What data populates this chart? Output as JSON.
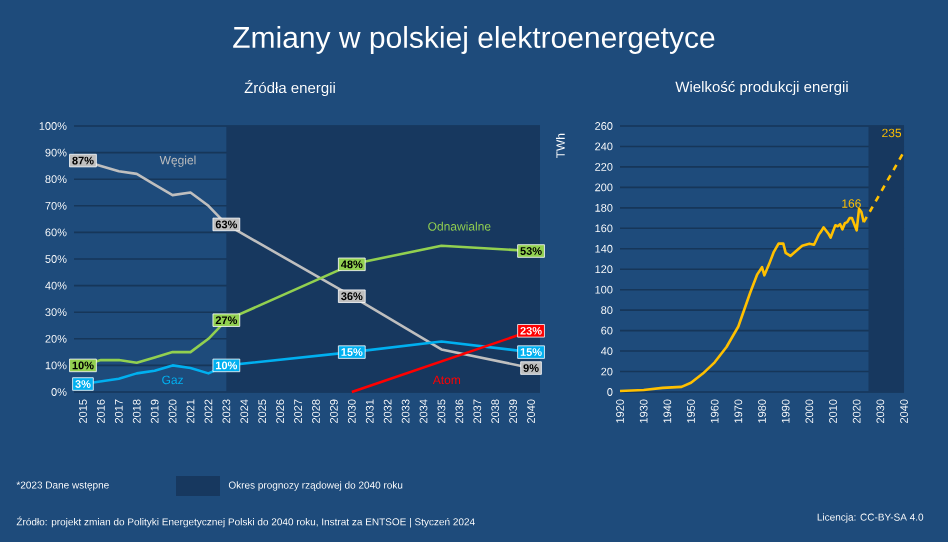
{
  "chart_data": [
    {
      "type": "line",
      "title": "Zmiany w polskiej elektroenergetyce",
      "subtitle": "Źródła energii",
      "categories": [
        "2015",
        "2016",
        "2017",
        "2018",
        "2019",
        "2020",
        "2021",
        "2022",
        "2023",
        "2024",
        "2025",
        "2026",
        "2027",
        "2028",
        "2029",
        "2030",
        "2031",
        "2032",
        "2033",
        "2034",
        "2035",
        "2036",
        "2037",
        "2038",
        "2039",
        "2040"
      ],
      "series": [
        {
          "name": "Węgiel",
          "color": "#bfbfbf",
          "values": [
            87,
            85,
            83,
            82,
            78,
            74,
            75,
            70,
            63,
            null,
            null,
            null,
            null,
            null,
            null,
            36,
            null,
            null,
            null,
            null,
            16,
            null,
            null,
            null,
            null,
            9
          ],
          "value_labels": [
            "87%",
            null,
            null,
            null,
            null,
            null,
            null,
            null,
            "63%",
            null,
            null,
            null,
            null,
            null,
            null,
            "36%",
            null,
            null,
            null,
            null,
            null,
            null,
            null,
            null,
            null,
            "9%"
          ]
        },
        {
          "name": "Odnawialne",
          "color": "#92d050",
          "values": [
            10,
            12,
            12,
            11,
            13,
            15,
            15,
            20,
            27,
            null,
            null,
            null,
            null,
            null,
            null,
            48,
            null,
            null,
            null,
            null,
            55,
            null,
            null,
            null,
            null,
            53
          ],
          "value_labels": [
            "10%",
            null,
            null,
            null,
            null,
            null,
            null,
            null,
            "27%",
            null,
            null,
            null,
            null,
            null,
            null,
            "48%",
            null,
            null,
            null,
            null,
            null,
            null,
            null,
            null,
            null,
            "53%"
          ]
        },
        {
          "name": "Gaz",
          "color": "#00b0f0",
          "values": [
            3,
            4,
            5,
            7,
            8,
            10,
            9,
            7,
            10,
            null,
            null,
            null,
            null,
            null,
            null,
            15,
            null,
            null,
            null,
            null,
            19,
            null,
            null,
            null,
            null,
            15
          ],
          "value_labels": [
            "3%",
            null,
            null,
            null,
            null,
            null,
            null,
            null,
            "10%",
            null,
            null,
            null,
            null,
            null,
            null,
            "15%",
            null,
            null,
            null,
            null,
            null,
            null,
            null,
            null,
            null,
            "15%"
          ]
        },
        {
          "name": "Atom",
          "color": "#ff0000",
          "values": [
            null,
            null,
            null,
            null,
            null,
            null,
            null,
            null,
            null,
            null,
            null,
            null,
            null,
            null,
            null,
            0,
            null,
            null,
            null,
            null,
            null,
            null,
            null,
            null,
            null,
            23
          ],
          "value_labels": [
            null,
            null,
            null,
            null,
            null,
            null,
            null,
            null,
            null,
            null,
            null,
            null,
            null,
            null,
            null,
            null,
            null,
            null,
            null,
            null,
            null,
            null,
            null,
            null,
            null,
            "23%"
          ]
        }
      ],
      "ylim": [
        0,
        100
      ],
      "yticks": [
        {
          "value": 0,
          "label": "0%"
        },
        {
          "value": 10,
          "label": "10%"
        },
        {
          "value": 20,
          "label": "20%"
        },
        {
          "value": 30,
          "label": "30%"
        },
        {
          "value": 40,
          "label": "40%"
        },
        {
          "value": 50,
          "label": "50%"
        },
        {
          "value": 60,
          "label": "60%"
        },
        {
          "value": 70,
          "label": "70%"
        },
        {
          "value": 80,
          "label": "80%"
        },
        {
          "value": 90,
          "label": "90%"
        },
        {
          "value": 100,
          "label": "100%"
        }
      ],
      "bands": [
        {
          "axis": "x",
          "from": "2023",
          "to": "2040",
          "label": "Okres prognozy rządowej do 2040 roku",
          "color": "#17385f"
        }
      ],
      "annotations": [
        "*2023 Dane wstępne",
        "Źródło: projekt zmian do Polityki Energetycznej Polski do 2040 roku,  Instrat za ENTSOE |  Styczeń 2024"
      ],
      "grid": "y",
      "legend": "bottom left"
    },
    {
      "type": "line",
      "title": "Wielkość produkcji energii",
      "ylabel": "TWh",
      "series": [
        {
          "color": "#ffc000",
          "x": [
            1920,
            1930,
            1938,
            1946,
            1950,
            1955,
            1960,
            1965,
            1970,
            1975,
            1978,
            1980,
            1981,
            1983,
            1985,
            1987,
            1989,
            1990,
            1992,
            1995,
            1997,
            2000,
            2002,
            2004,
            2005,
            2006,
            2008,
            2009,
            2010,
            2011,
            2012,
            2013,
            2014,
            2015,
            2016,
            2017,
            2018,
            2019,
            2020,
            2021,
            2022,
            2023
          ],
          "values": [
            1,
            2,
            4,
            5,
            9,
            18,
            29,
            44,
            64,
            97,
            115,
            122,
            114,
            125,
            137,
            145,
            145,
            136,
            133,
            139,
            143,
            145,
            144,
            154,
            157,
            161,
            155,
            151,
            157,
            163,
            162,
            164,
            159,
            165,
            166,
            170,
            170,
            164,
            158,
            179,
            176,
            166
          ],
          "value_labels": [
            null,
            null,
            null,
            null,
            null,
            null,
            null,
            null,
            null,
            null,
            null,
            null,
            null,
            null,
            null,
            null,
            null,
            null,
            null,
            null,
            null,
            null,
            null,
            null,
            null,
            null,
            null,
            null,
            null,
            null,
            null,
            null,
            null,
            null,
            null,
            null,
            null,
            null,
            null,
            null,
            null,
            "166"
          ]
        },
        {
          "color": "#ffc000",
          "line_style": "dashed",
          "x": [
            2023,
            2040
          ],
          "values": [
            166,
            235
          ],
          "value_labels": [
            null,
            "235"
          ]
        }
      ],
      "xlim": [
        1920,
        2040
      ],
      "xticks": [
        1920,
        1930,
        1940,
        1950,
        1960,
        1970,
        1980,
        1990,
        2000,
        2010,
        2020,
        2030,
        2040
      ],
      "ylim": [
        0,
        260
      ],
      "yticks": [
        0,
        20,
        40,
        60,
        80,
        100,
        120,
        140,
        160,
        180,
        200,
        220,
        240,
        260
      ],
      "bands": [
        {
          "axis": "x",
          "from": 2025,
          "to": 2040,
          "color": "#17385f"
        }
      ],
      "annotations": [
        "Licencja: CC-BY-SA 4.0"
      ],
      "grid": "y",
      "legend": false
    }
  ]
}
